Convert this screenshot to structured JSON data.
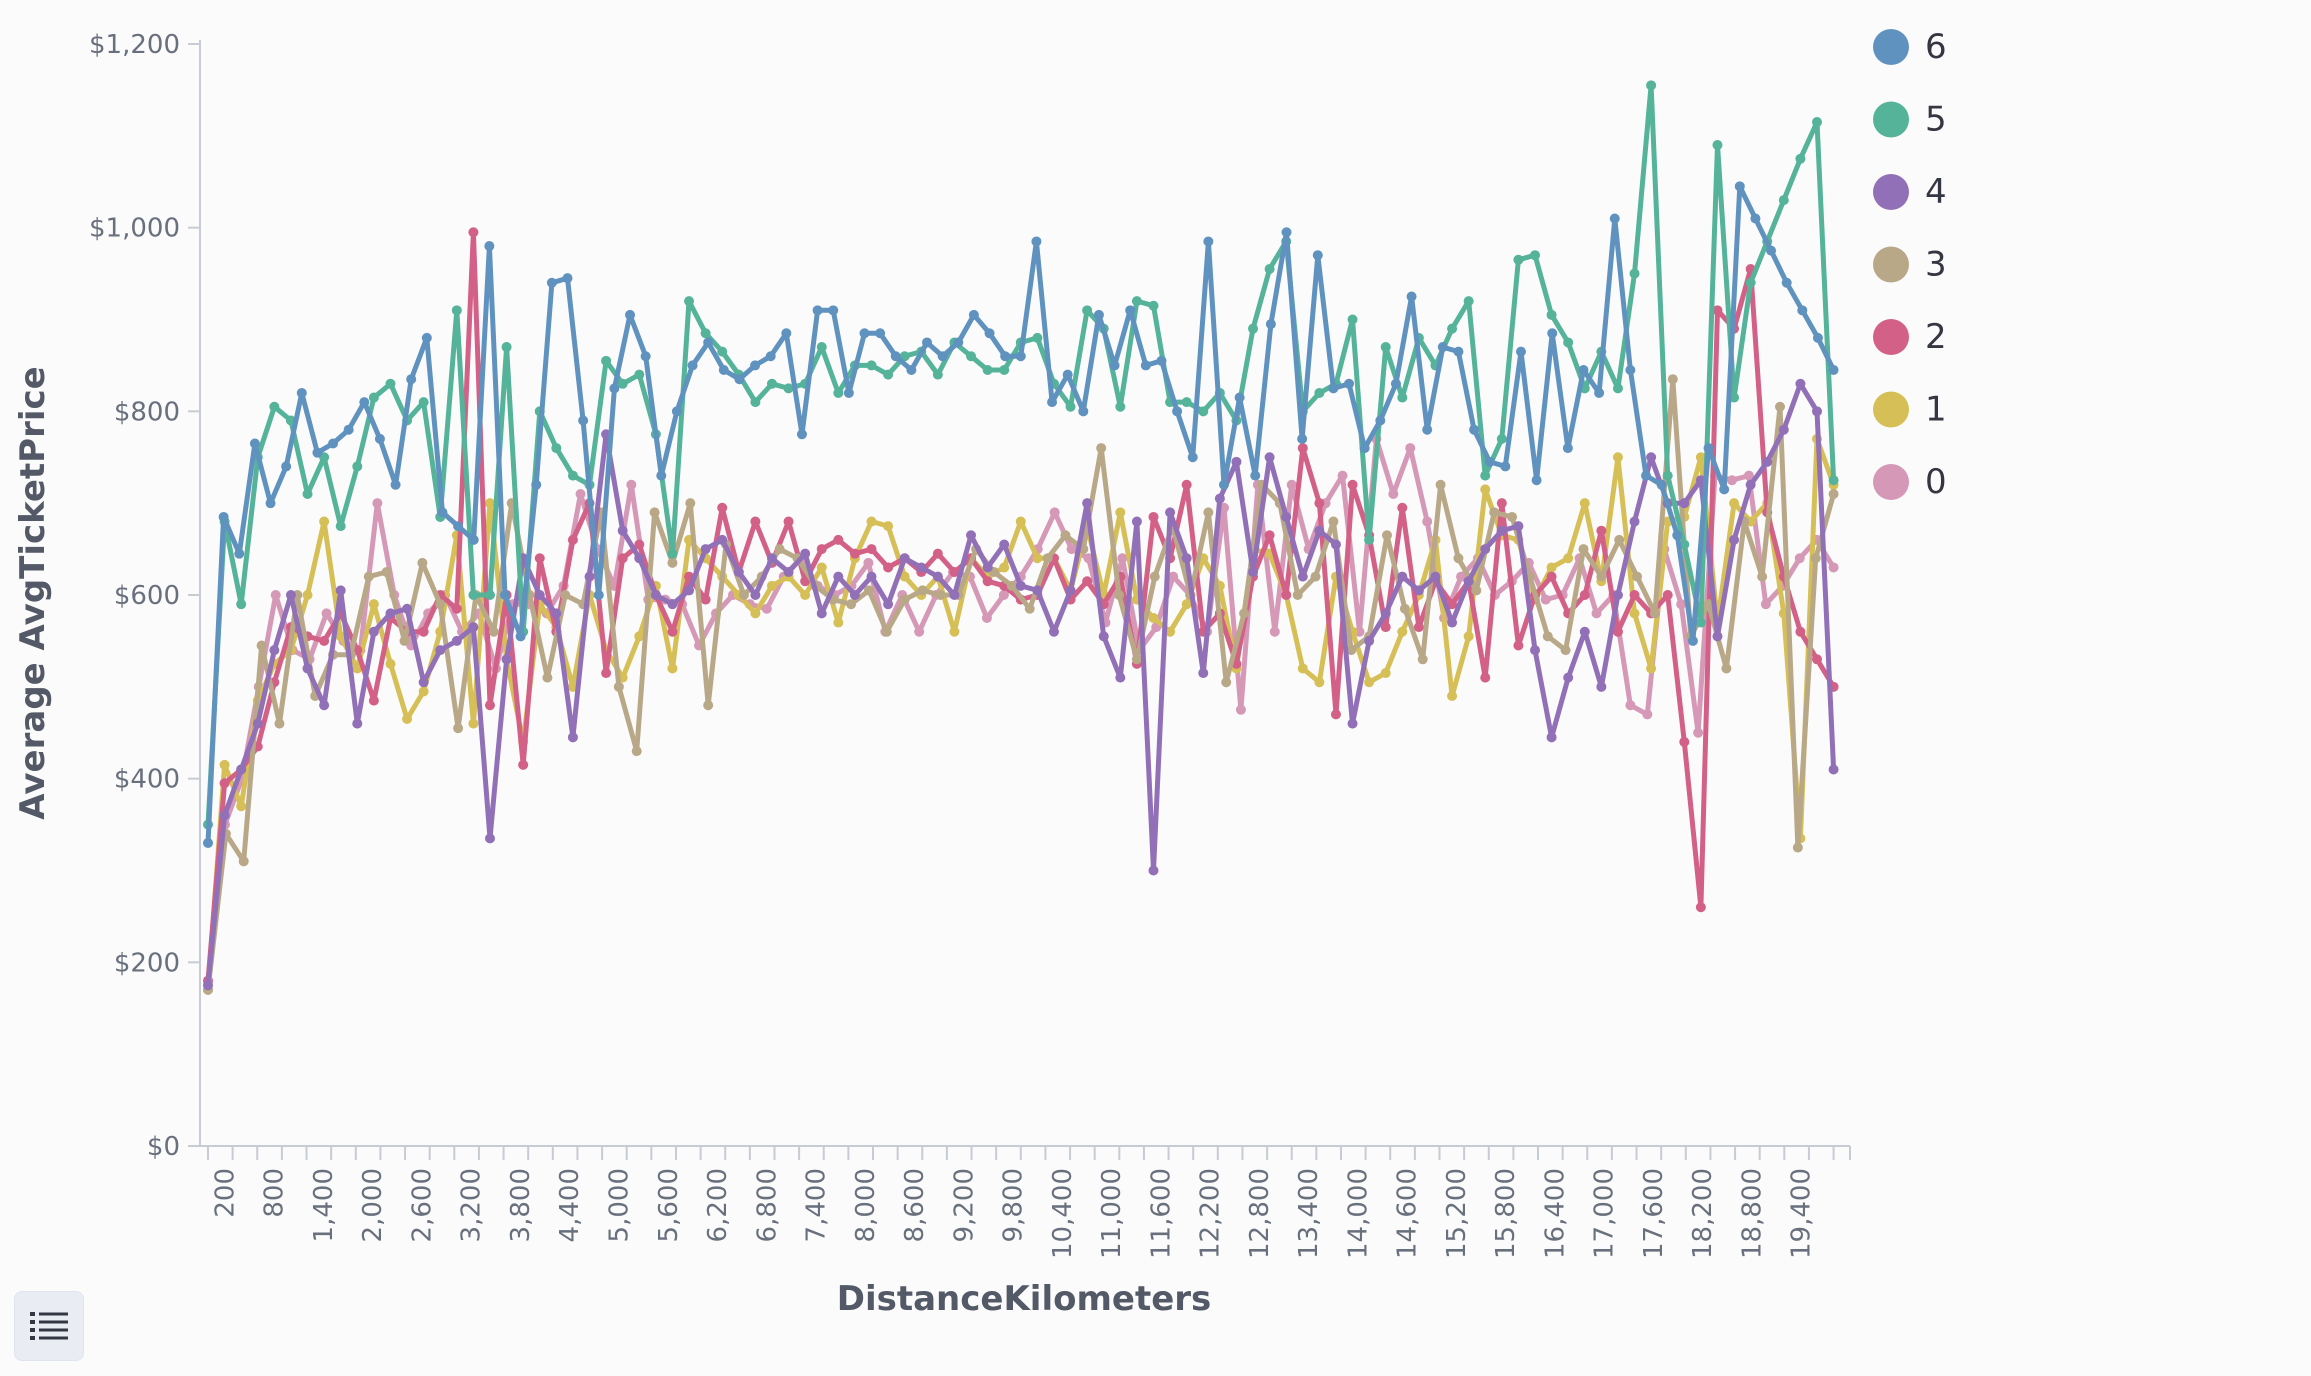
{
  "toolbar": {
    "legend_toggle_icon": "list-icon"
  },
  "chart_data": {
    "type": "line",
    "title": "",
    "xlabel": "DistanceKilometers",
    "ylabel": "Average AvgTicketPrice",
    "ylim": [
      0,
      1200
    ],
    "xlim": [
      0,
      20000
    ],
    "grid": false,
    "legend_position": "right",
    "y_ticks": [
      0,
      200,
      400,
      600,
      800,
      1000,
      1200
    ],
    "y_tick_labels": [
      "$0",
      "$200",
      "$400",
      "$600",
      "$800",
      "$1,000",
      "$1,200"
    ],
    "x_ticks": [
      200,
      800,
      1400,
      2000,
      2600,
      3200,
      3800,
      4400,
      5000,
      5600,
      6200,
      6800,
      7400,
      8000,
      8600,
      9200,
      9800,
      10400,
      11000,
      11600,
      12200,
      12800,
      13400,
      14000,
      14600,
      15200,
      15800,
      16400,
      17000,
      17600,
      18200,
      18800,
      19400
    ],
    "x_tick_labels": [
      "200",
      "800",
      "1,400",
      "2,000",
      "2,600",
      "3,200",
      "3,800",
      "4,400",
      "5,000",
      "5,600",
      "6,200",
      "6,800",
      "7,400",
      "8,000",
      "8,600",
      "9,200",
      "9,800",
      "10,400",
      "11,000",
      "11,600",
      "12,200",
      "12,800",
      "13,400",
      "14,000",
      "14,600",
      "15,200",
      "15,800",
      "16,400",
      "17,000",
      "17,600",
      "18,200",
      "18,800",
      "19,400"
    ],
    "series": [
      {
        "name": "6",
        "color": "#6092c0",
        "x_step": 200,
        "x_start": 0,
        "values": [
          330,
          685,
          645,
          765,
          700,
          740,
          820,
          755,
          765,
          780,
          810,
          770,
          720,
          835,
          880,
          690,
          675,
          660,
          980,
          600,
          555,
          720,
          940,
          945,
          790,
          600,
          825,
          905,
          860,
          730,
          800,
          850,
          875,
          845,
          835,
          850,
          860,
          885,
          775,
          910,
          910,
          820,
          885,
          885,
          860,
          845,
          875,
          860,
          875,
          905,
          885,
          860,
          860,
          985,
          810,
          840,
          800,
          905,
          850,
          910,
          850,
          855,
          800,
          750,
          985,
          720,
          815,
          730,
          895,
          995,
          770,
          970,
          825,
          830,
          760,
          790,
          830,
          925,
          780,
          870,
          865,
          780,
          745,
          740,
          865,
          725,
          885,
          760,
          845,
          820,
          1010,
          845,
          730,
          720,
          665,
          550,
          760,
          715,
          1045,
          1010,
          975,
          940,
          910,
          880,
          845
        ]
      },
      {
        "name": "5",
        "color": "#54b399",
        "x_step": 200,
        "x_start": 0,
        "values": [
          350,
          680,
          590,
          750,
          805,
          790,
          710,
          750,
          675,
          740,
          815,
          830,
          790,
          810,
          685,
          910,
          600,
          600,
          870,
          560,
          800,
          760,
          730,
          720,
          855,
          830,
          840,
          775,
          645,
          920,
          885,
          865,
          840,
          810,
          830,
          825,
          830,
          870,
          820,
          850,
          850,
          840,
          860,
          865,
          840,
          875,
          860,
          845,
          845,
          875,
          880,
          830,
          805,
          910,
          890,
          805,
          920,
          915,
          810,
          810,
          800,
          820,
          790,
          890,
          955,
          985,
          800,
          820,
          830,
          900,
          660,
          870,
          815,
          880,
          850,
          890,
          920,
          730,
          770,
          965,
          970,
          905,
          875,
          825,
          865,
          825,
          950,
          1155,
          730,
          655,
          570,
          1090,
          815,
          940,
          985,
          1030,
          1075,
          1115,
          725
        ]
      },
      {
        "name": "4",
        "color": "#9170b8",
        "x_step": 200,
        "x_start": 0,
        "values": [
          175,
          360,
          410,
          460,
          540,
          600,
          520,
          480,
          605,
          460,
          560,
          580,
          585,
          505,
          540,
          550,
          565,
          335,
          530,
          640,
          600,
          580,
          445,
          620,
          775,
          670,
          640,
          600,
          590,
          605,
          650,
          660,
          625,
          600,
          640,
          625,
          645,
          580,
          620,
          600,
          620,
          590,
          640,
          630,
          620,
          600,
          665,
          630,
          655,
          610,
          605,
          560,
          605,
          700,
          555,
          510,
          680,
          300,
          690,
          640,
          515,
          705,
          745,
          625,
          750,
          685,
          620,
          670,
          655,
          460,
          550,
          580,
          620,
          605,
          620,
          570,
          615,
          650,
          670,
          675,
          540,
          445,
          510,
          560,
          500,
          600,
          680,
          750,
          700,
          700,
          725,
          555,
          660,
          720,
          745,
          780,
          830,
          800,
          410
        ]
      },
      {
        "name": "3",
        "color": "#d6bf57",
        "x_step": 200,
        "x_start": 0,
        "_note": "",
        "values": []
      },
      {
        "name": "2",
        "color": "#d36086",
        "x_step": 200,
        "x_start": 0,
        "values": [
          180,
          395,
          410,
          435,
          505,
          565,
          555,
          550,
          580,
          540,
          485,
          575,
          560,
          560,
          600,
          585,
          995,
          480,
          600,
          415,
          640,
          560,
          660,
          700,
          515,
          640,
          655,
          600,
          560,
          620,
          595,
          695,
          625,
          680,
          635,
          680,
          615,
          650,
          660,
          645,
          650,
          630,
          640,
          625,
          645,
          625,
          640,
          615,
          610,
          595,
          600,
          640,
          595,
          615,
          590,
          620,
          525,
          685,
          640,
          720,
          560,
          580,
          525,
          620,
          665,
          600,
          760,
          700,
          470,
          720,
          665,
          565,
          695,
          565,
          615,
          590,
          615,
          510,
          700,
          545,
          600,
          620,
          580,
          600,
          670,
          560,
          600,
          580,
          600,
          440,
          260,
          910,
          890,
          955,
          690,
          620,
          560,
          530,
          500
        ]
      },
      {
        "name": "1",
        "color": "#d6bf57",
        "x_step": 200,
        "x_start": 0,
        "values": [
          170,
          415,
          370,
          485,
          525,
          540,
          600,
          680,
          555,
          520,
          590,
          525,
          465,
          495,
          560,
          665,
          460,
          700,
          530,
          440,
          590,
          565,
          500,
          600,
          540,
          510,
          555,
          610,
          520,
          660,
          640,
          620,
          600,
          580,
          610,
          620,
          600,
          630,
          570,
          640,
          680,
          675,
          620,
          600,
          620,
          560,
          640,
          620,
          630,
          680,
          640,
          640,
          605,
          675,
          600,
          690,
          595,
          575,
          560,
          590,
          640,
          610,
          520,
          650,
          645,
          600,
          520,
          505,
          620,
          560,
          505,
          515,
          560,
          600,
          660,
          490,
          555,
          715,
          665,
          660,
          595,
          630,
          640,
          700,
          615,
          750,
          580,
          520,
          680,
          685,
          750,
          570,
          700,
          680,
          700,
          580,
          335,
          770,
          720
        ]
      },
      {
        "name": "0",
        "color": "#d598b6",
        "x_step": 200,
        "x_start": 0,
        "values": [
          180,
          350,
          400,
          500,
          600,
          540,
          530,
          580,
          550,
          540,
          700,
          600,
          545,
          580,
          600,
          560,
          580,
          520,
          590,
          590,
          580,
          610,
          710,
          650,
          610,
          720,
          595,
          595,
          590,
          545,
          580,
          600,
          590,
          585,
          620,
          640,
          610,
          600,
          610,
          635,
          560,
          600,
          560,
          600,
          625,
          620,
          575,
          600,
          620,
          650,
          690,
          650,
          640,
          570,
          640,
          540,
          565,
          620,
          600,
          560,
          695,
          475,
          720,
          560,
          720,
          650,
          700,
          730,
          560,
          770,
          710,
          760,
          680,
          575,
          620,
          640,
          600,
          615,
          635,
          595,
          600,
          640,
          580,
          600,
          480,
          470,
          650,
          590,
          450,
          730,
          725,
          730,
          590,
          610,
          640,
          660,
          630
        ]
      }
    ],
    "series_3": {
      "name": "3",
      "color": "#b9a888",
      "values": [
        170,
        340,
        310,
        545,
        460,
        600,
        490,
        535,
        535,
        620,
        625,
        550,
        635,
        590,
        455,
        600,
        560,
        700,
        600,
        510,
        600,
        590,
        690,
        500,
        430,
        690,
        635,
        700,
        480,
        655,
        600,
        620,
        650,
        640,
        610,
        595,
        590,
        605,
        560,
        595,
        605,
        600,
        600,
        650,
        625,
        610,
        585,
        640,
        665,
        650,
        760,
        600,
        530,
        620,
        675,
        600,
        690,
        505,
        580,
        720,
        700,
        600,
        620,
        680,
        540,
        555,
        665,
        585,
        530,
        720,
        640,
        605,
        690,
        685,
        620,
        555,
        540,
        650,
        620,
        660,
        620,
        580,
        835,
        555,
        590,
        520,
        680,
        620,
        805,
        325,
        640,
        710
      ]
    }
  }
}
